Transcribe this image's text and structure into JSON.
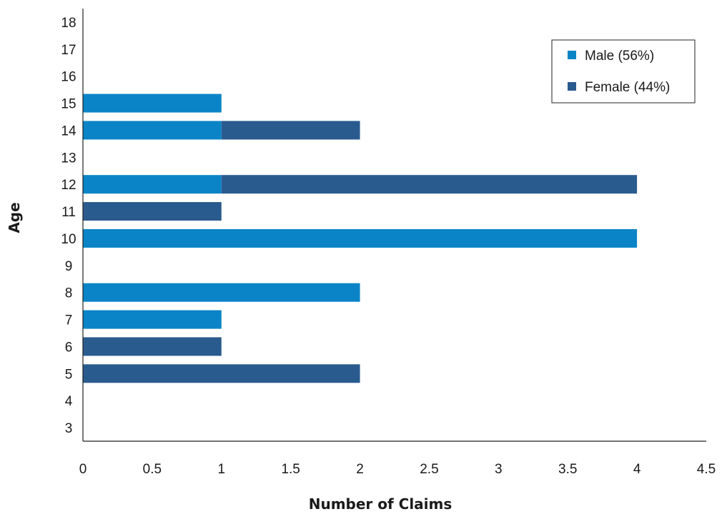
{
  "chart_data": {
    "type": "bar",
    "orientation": "horizontal",
    "stacked": true,
    "title": "",
    "xlabel": "Number of Claims",
    "ylabel": "Age",
    "xlim": [
      0,
      4.5
    ],
    "xticks": [
      "0",
      "0.5",
      "1",
      "1.5",
      "2",
      "2.5",
      "3",
      "3.5",
      "4",
      "4.5"
    ],
    "categories": [
      "3",
      "4",
      "5",
      "6",
      "7",
      "8",
      "9",
      "10",
      "11",
      "12",
      "13",
      "14",
      "15",
      "16",
      "17",
      "18"
    ],
    "series": [
      {
        "name": "Male (56%)",
        "color": "#0a84c6",
        "values": [
          0,
          0,
          0,
          0,
          1,
          2,
          0,
          4,
          0,
          1,
          0,
          1,
          1,
          0,
          0,
          0
        ]
      },
      {
        "name": "Female (44%)",
        "color": "#2a5b8e",
        "values": [
          0,
          0,
          2,
          1,
          0,
          0,
          0,
          0,
          1,
          3,
          0,
          1,
          0,
          0,
          0,
          0
        ]
      }
    ],
    "grid": false,
    "legend_position": "top-right"
  }
}
